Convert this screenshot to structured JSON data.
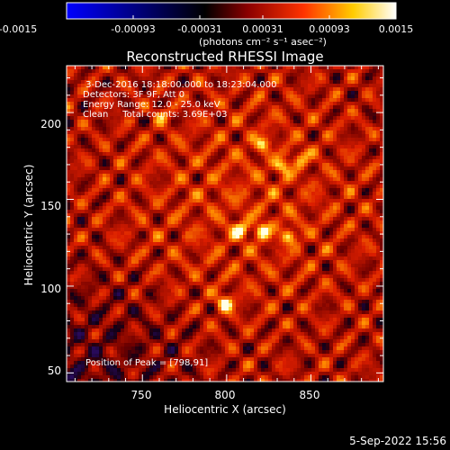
{
  "colorbar": {
    "tick_labels": [
      "-0.0015",
      "-0.00093",
      "-0.00031",
      "0.00031",
      "0.00093",
      "0.0015"
    ],
    "unit_label": "(photons cm⁻² s⁻¹ asec⁻²)",
    "range": [
      -0.0015,
      0.0015
    ],
    "colors": [
      "#0000ff",
      "#000000",
      "#8b0000",
      "#ff3300",
      "#ffcc00",
      "#ffffff"
    ]
  },
  "chart_data": {
    "type": "heatmap",
    "title": "Reconstructed RHESSI Image",
    "xlabel": "Heliocentric X (arcsec)",
    "ylabel": "Heliocentric Y (arcsec)",
    "xlim": [
      705,
      893
    ],
    "ylim": [
      45,
      227
    ],
    "x_ticks": [
      750,
      800,
      850
    ],
    "y_ticks": [
      50,
      100,
      150,
      200
    ],
    "annotation_lines": [
      " 3-Dec-2016 18:18:00.000 to 18:23:04.000",
      "Detectors: 3F 9F, Att 0",
      "Energy Range: 12.0 - 25.0 keV",
      "Clean     Total counts: 3.69E+03"
    ],
    "peak_label": "Position of Peak = [798,91]",
    "peak": {
      "x": 798,
      "y": 91
    },
    "bright_sources": [
      {
        "x": 798,
        "y": 91,
        "level": 1.0
      },
      {
        "x": 807,
        "y": 133,
        "level": 0.85
      },
      {
        "x": 820,
        "y": 133,
        "level": 0.8
      },
      {
        "x": 836,
        "y": 130,
        "level": 0.7
      },
      {
        "x": 832,
        "y": 170,
        "level": 0.7
      },
      {
        "x": 820,
        "y": 183,
        "level": 0.6
      },
      {
        "x": 843,
        "y": 175,
        "level": 0.55
      },
      {
        "x": 760,
        "y": 200,
        "level": 0.45
      }
    ]
  },
  "footer_timestamp": "5-Sep-2022 15:56"
}
